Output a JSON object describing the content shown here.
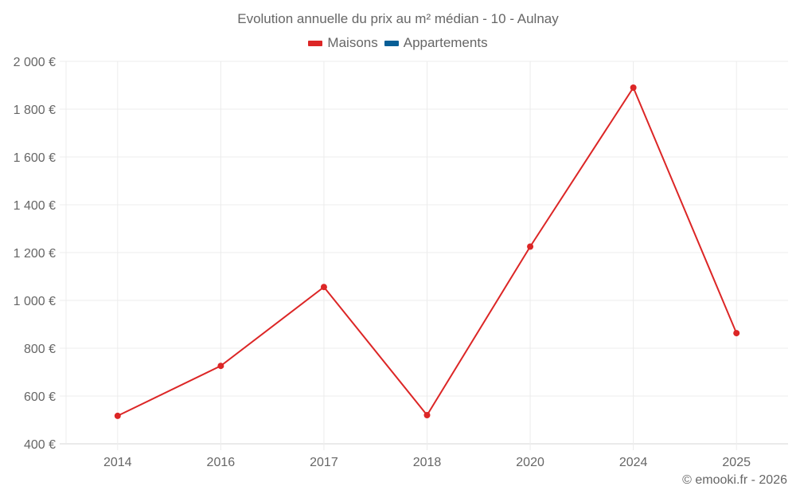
{
  "chart_data": {
    "type": "line",
    "title": "Evolution annuelle du prix au m² médian - 10 - Aulnay",
    "xlabel": "",
    "ylabel": "",
    "categories": [
      "2014",
      "2016",
      "2017",
      "2018",
      "2020",
      "2024",
      "2025"
    ],
    "series": [
      {
        "name": "Maisons",
        "color": "#dc2626",
        "values": [
          517,
          726,
          1056,
          520,
          1225,
          1890,
          863
        ]
      },
      {
        "name": "Appartements",
        "color": "#075e96",
        "values": []
      }
    ],
    "ylim": [
      400,
      2000
    ],
    "yticks": [
      400,
      600,
      800,
      1000,
      1200,
      1400,
      1600,
      1800,
      2000
    ],
    "ytick_labels": [
      "400 €",
      "600 €",
      "800 €",
      "1 000 €",
      "1 200 €",
      "1 400 €",
      "1 600 €",
      "1 800 €",
      "2 000 €"
    ],
    "grid": true,
    "legend_position": "top"
  },
  "header": {
    "title": "Evolution annuelle du prix au m² médian - 10 - Aulnay"
  },
  "legend": [
    {
      "label": "Maisons",
      "color": "#dc2626"
    },
    {
      "label": "Appartements",
      "color": "#075e96"
    }
  ],
  "credit": "© emooki.fr - 2026"
}
